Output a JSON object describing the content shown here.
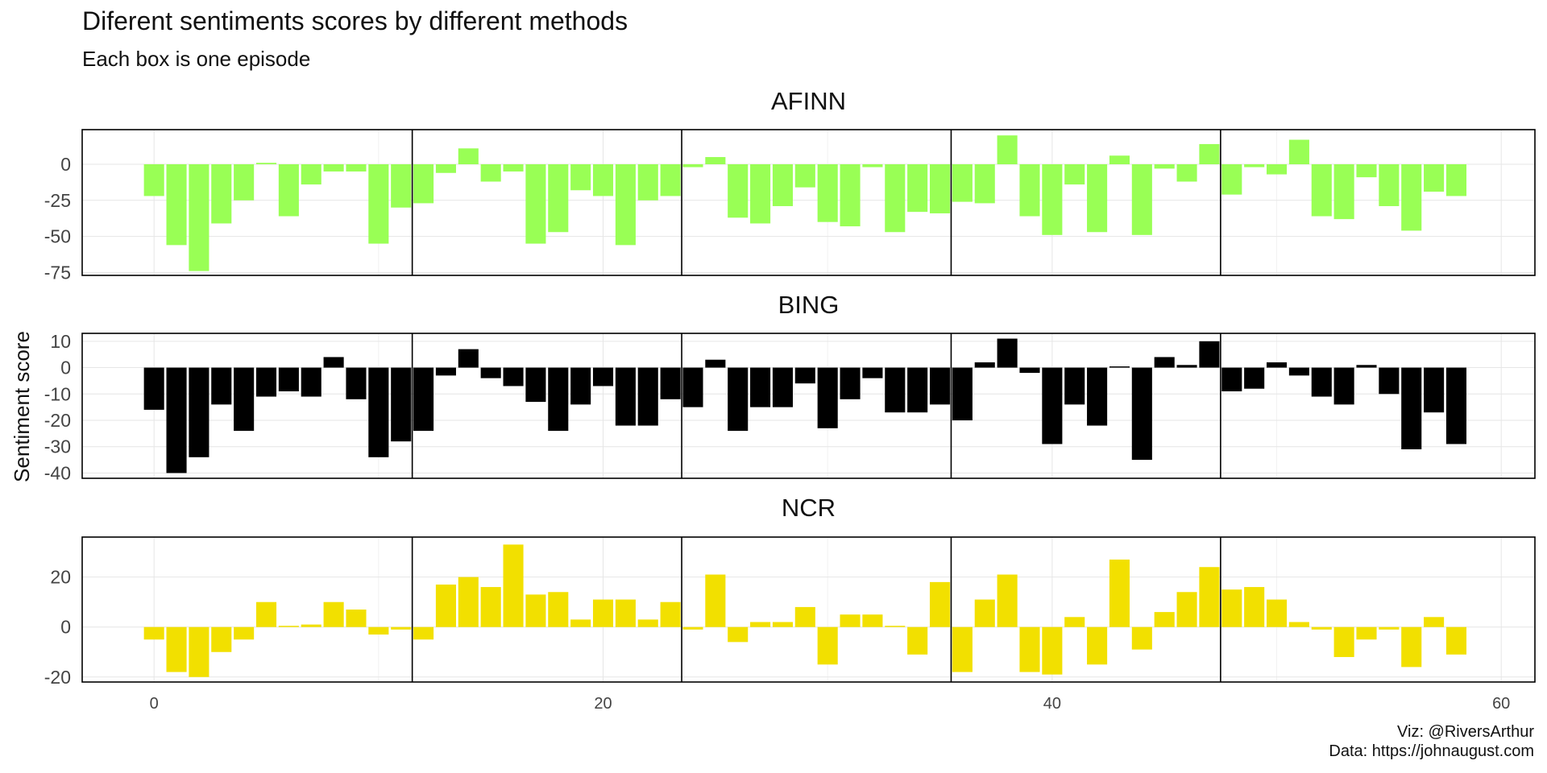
{
  "title": "Diferent sentiments scores by different methods",
  "subtitle": "Each box is one episode",
  "caption": {
    "line1": "Viz: @RiversArthur",
    "line2": "Data: https://johnaugust.com"
  },
  "chart_data": {
    "type": "bar",
    "ylabel": "Sentiment score",
    "xlabel": "",
    "x": [
      0,
      1,
      2,
      3,
      4,
      5,
      6,
      7,
      8,
      9,
      10,
      11,
      12,
      13,
      14,
      15,
      16,
      17,
      18,
      19,
      20,
      21,
      22,
      23,
      24,
      25,
      26,
      27,
      28,
      29,
      30,
      31,
      32,
      33,
      34,
      35,
      36,
      37,
      38,
      39,
      40,
      41,
      42,
      43,
      44,
      45,
      46,
      47,
      48,
      49,
      50,
      51,
      52,
      53,
      54,
      55,
      56,
      57,
      58
    ],
    "xlim": [
      -3.2,
      61.5
    ],
    "xticks": [
      0,
      20,
      40,
      60
    ],
    "season_breaks": [
      12,
      24,
      36,
      48
    ],
    "grid": true,
    "panels": [
      {
        "name": "AFINN",
        "color": "#99ff55",
        "ylim": [
          -77,
          24
        ],
        "yticks": [
          0,
          -25,
          -50,
          -75
        ],
        "values": [
          -22,
          -56,
          -74,
          -41,
          -25,
          1,
          -36,
          -14,
          -5,
          -5,
          -55,
          -30,
          -27,
          -6,
          11,
          -12,
          -5,
          -55,
          -47,
          -18,
          -22,
          -56,
          -25,
          -22,
          -2,
          5,
          -37,
          -41,
          -29,
          -16,
          -40,
          -43,
          -2,
          -47,
          -33,
          -34,
          -26,
          -27,
          20,
          -36,
          -49,
          -14,
          -47,
          6,
          -49,
          -3,
          -12,
          14,
          -21,
          -2,
          -7,
          17,
          -36,
          -38,
          -9,
          -29,
          -46,
          -19,
          -22
        ]
      },
      {
        "name": "BING",
        "color": "#000000",
        "ylim": [
          -42,
          13
        ],
        "yticks": [
          10,
          0,
          -10,
          -20,
          -30,
          -40
        ],
        "values": [
          -16,
          -40,
          -34,
          -14,
          -24,
          -11,
          -9,
          -11,
          4,
          -12,
          -34,
          -28,
          -24,
          -3,
          7,
          -4,
          -7,
          -13,
          -24,
          -14,
          -7,
          -22,
          -22,
          -12,
          -15,
          3,
          -24,
          -15,
          -15,
          -6,
          -23,
          -12,
          -4,
          -17,
          -17,
          -14,
          -20,
          2,
          11,
          -2,
          -29,
          -14,
          -22,
          0,
          -35,
          4,
          1,
          10,
          -9,
          -8,
          2,
          -3,
          -11,
          -14,
          1,
          -10,
          -31,
          -17,
          -29
        ]
      },
      {
        "name": "NCR",
        "color": "#f2e000",
        "ylim": [
          -22,
          36
        ],
        "yticks": [
          20,
          0,
          -20
        ],
        "values": [
          -5,
          -18,
          -20,
          -10,
          -5,
          10,
          0,
          1,
          10,
          7,
          -3,
          -1,
          -5,
          17,
          20,
          16,
          33,
          13,
          14,
          3,
          11,
          11,
          3,
          10,
          -1,
          21,
          -6,
          2,
          2,
          8,
          -15,
          5,
          5,
          0,
          -11,
          18,
          -18,
          11,
          21,
          -18,
          -19,
          4,
          -15,
          27,
          -9,
          6,
          14,
          24,
          15,
          16,
          11,
          2,
          -1,
          -12,
          -5,
          -1,
          -16,
          4,
          -11
        ]
      }
    ]
  }
}
